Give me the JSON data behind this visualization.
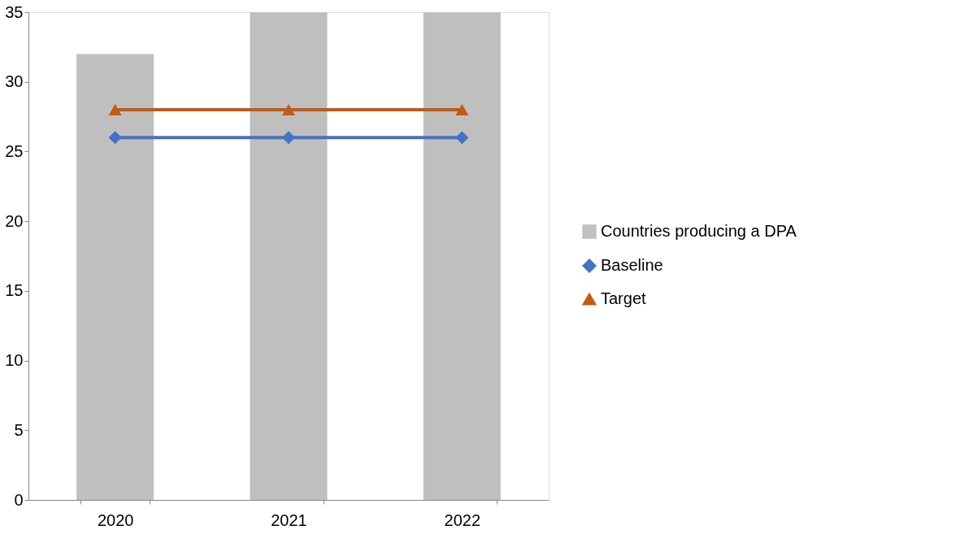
{
  "chart_data": {
    "type": "bar",
    "categories": [
      "2020",
      "2021",
      "2022"
    ],
    "series": [
      {
        "name": "Countries producing a DPA",
        "color": "#bfbfbf",
        "values": [
          32,
          35,
          35
        ]
      },
      {
        "name": "Baseline",
        "type": "line",
        "color": "#4472c4",
        "marker": "diamond",
        "line_style": "solid",
        "values": [
          26,
          26,
          26
        ]
      },
      {
        "name": "Target",
        "type": "line",
        "color": "#c55a11",
        "marker": "triangle",
        "line_style": "solid",
        "values": [
          28,
          28,
          28
        ]
      }
    ],
    "ylim": [
      0,
      35
    ],
    "yticks": [
      0,
      5,
      10,
      15,
      20,
      25,
      30,
      35
    ],
    "grid": false,
    "legend": "right"
  }
}
